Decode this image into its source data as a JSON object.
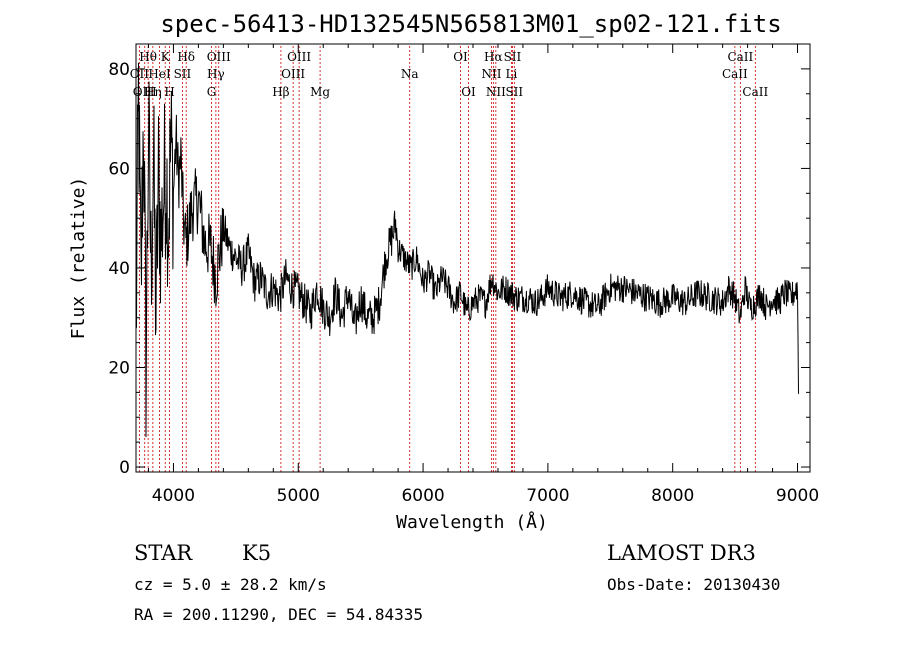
{
  "chart_data": {
    "type": "line",
    "title": "spec-56413-HD132545N565813M01_sp02-121.fits",
    "xlabel": "Wavelength (Å)",
    "ylabel": "Flux (relative)",
    "xlim": [
      3700,
      9100
    ],
    "ylim": [
      -1,
      85
    ],
    "xticks": [
      4000,
      5000,
      6000,
      7000,
      8000,
      9000
    ],
    "yticks": [
      0,
      20,
      40,
      60,
      80
    ],
    "series": [
      {
        "name": "flux",
        "color": "#000000",
        "x": [
          3700,
          3720,
          3740,
          3760,
          3780,
          3800,
          3820,
          3840,
          3860,
          3880,
          3900,
          3920,
          3940,
          3960,
          3980,
          4000,
          4020,
          4040,
          4060,
          4080,
          4100,
          4150,
          4200,
          4250,
          4300,
          4340,
          4400,
          4450,
          4500,
          4550,
          4600,
          4650,
          4700,
          4750,
          4800,
          4850,
          4900,
          4950,
          5000,
          5050,
          5100,
          5150,
          5200,
          5250,
          5300,
          5350,
          5400,
          5450,
          5500,
          5550,
          5600,
          5650,
          5700,
          5750,
          5780,
          5800,
          5850,
          5900,
          5950,
          6000,
          6050,
          6100,
          6150,
          6200,
          6250,
          6300,
          6350,
          6400,
          6450,
          6500,
          6550,
          6600,
          6650,
          6700,
          6750,
          6800,
          6850,
          6900,
          6950,
          7000,
          7100,
          7200,
          7300,
          7400,
          7500,
          7600,
          7700,
          7800,
          7900,
          8000,
          8100,
          8200,
          8300,
          8400,
          8450,
          8500,
          8540,
          8580,
          8620,
          8660,
          8700,
          8750,
          8800,
          8850,
          8900,
          8950,
          8990,
          9000,
          9010
        ],
        "y": [
          25,
          75,
          35,
          72,
          20,
          68,
          40,
          62,
          30,
          58,
          45,
          55,
          60,
          50,
          65,
          55,
          66,
          58,
          62,
          50,
          45,
          52,
          54,
          45,
          44,
          38,
          48,
          44,
          42,
          40,
          43,
          37,
          38,
          35,
          36,
          34,
          38,
          36,
          35,
          33,
          31,
          36,
          32,
          30,
          35,
          30,
          35,
          28,
          34,
          30,
          30,
          33,
          42,
          46,
          49,
          44,
          42,
          40,
          42,
          37,
          39,
          35,
          38,
          36,
          33,
          35,
          31,
          33,
          34,
          33,
          38,
          35,
          36,
          35,
          34,
          34,
          34,
          33,
          34,
          36,
          34,
          35,
          33,
          32,
          36,
          36,
          35,
          34,
          33,
          34,
          33,
          35,
          34,
          33,
          36,
          34,
          30,
          36,
          32,
          33,
          35,
          32,
          34,
          33,
          35,
          34,
          36,
          36,
          10
        ],
        "style": "noisy"
      }
    ],
    "lines": [
      {
        "name": "Hθ",
        "x": 3797,
        "row": 0
      },
      {
        "name": "OII",
        "x": 3727,
        "row": 1
      },
      {
        "name": "OIII",
        "x": 3770,
        "row": 2
      },
      {
        "name": "Hη",
        "x": 3835,
        "row": 2
      },
      {
        "name": "K",
        "x": 3934,
        "row": 0
      },
      {
        "name": "HeI",
        "x": 3889,
        "row": 1
      },
      {
        "name": "H",
        "x": 3969,
        "row": 2
      },
      {
        "name": "SII",
        "x": 4072,
        "row": 1
      },
      {
        "name": "Hδ",
        "x": 4102,
        "row": 0
      },
      {
        "name": "OIII",
        "x": 4363,
        "row": 0
      },
      {
        "name": "Hγ",
        "x": 4340,
        "row": 1
      },
      {
        "name": "G",
        "x": 4305,
        "row": 2
      },
      {
        "name": "Hβ",
        "x": 4861,
        "row": 2
      },
      {
        "name": "OIII",
        "x": 5007,
        "row": 0
      },
      {
        "name": "OIII",
        "x": 4959,
        "row": 1
      },
      {
        "name": "Mg",
        "x": 5175,
        "row": 2
      },
      {
        "name": "Na",
        "x": 5893,
        "row": 1
      },
      {
        "name": "OI",
        "x": 6300,
        "row": 0
      },
      {
        "name": "OI",
        "x": 6364,
        "row": 2
      },
      {
        "name": "Hα",
        "x": 6563,
        "row": 0
      },
      {
        "name": "NII",
        "x": 6548,
        "row": 1
      },
      {
        "name": "NII",
        "x": 6583,
        "row": 2
      },
      {
        "name": "SII",
        "x": 6716,
        "row": 0
      },
      {
        "name": "Li",
        "x": 6708,
        "row": 1
      },
      {
        "name": "SII",
        "x": 6731,
        "row": 2
      },
      {
        "name": "CaII",
        "x": 8542,
        "row": 0
      },
      {
        "name": "CaII",
        "x": 8498,
        "row": 1
      },
      {
        "name": "CaII",
        "x": 8662,
        "row": 2
      }
    ]
  },
  "info": {
    "class": "STAR",
    "subclass": "K5",
    "survey": "LAMOST DR3",
    "cz": "cz = 5.0 ± 28.2 km/s",
    "obs_date": "Obs-Date: 20130430",
    "coords": "RA = 200.11290, DEC =  54.84335"
  }
}
